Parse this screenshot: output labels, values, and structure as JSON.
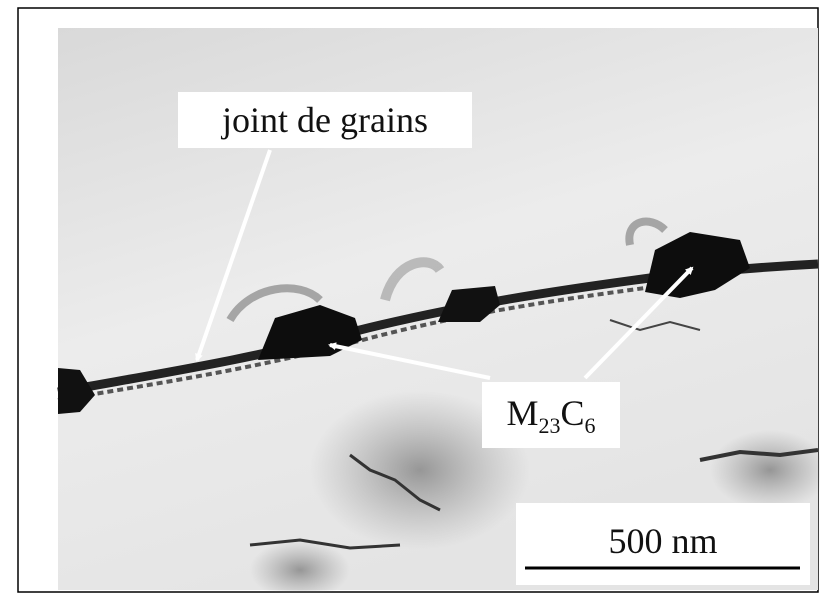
{
  "labels": {
    "grain_boundary": "joint de grains",
    "precipitate": [
      "M",
      "23",
      "C",
      "6"
    ],
    "scale_bar": "500 nm"
  }
}
